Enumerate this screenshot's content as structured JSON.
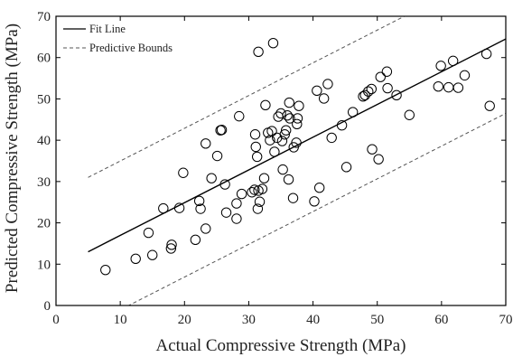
{
  "chart_data": {
    "type": "scatter",
    "xlabel": "Actual Compressive Strength (MPa)",
    "ylabel": "Predicted Compressive Strength (MPa)",
    "xlim": [
      0,
      70
    ],
    "ylim": [
      0,
      70
    ],
    "xticks": [
      0,
      10,
      20,
      30,
      40,
      50,
      60,
      70
    ],
    "yticks": [
      0,
      10,
      20,
      30,
      40,
      50,
      60,
      70
    ],
    "grid": false,
    "legend_position": "top-left",
    "legend": [
      "Fit Line",
      "Predictive Bounds"
    ],
    "colors": {
      "points": "#000000",
      "fit_line": "#000000",
      "bounds": "#555555",
      "axes": "#000000"
    },
    "fit_line": {
      "x": [
        5,
        70
      ],
      "y": [
        13,
        64.5
      ]
    },
    "predictive_bounds": {
      "upper": {
        "x": [
          5,
          70
        ],
        "y": [
          31,
          82.5
        ]
      },
      "lower": {
        "x": [
          5,
          70
        ],
        "y": [
          -5,
          46.5
        ]
      }
    },
    "points": [
      {
        "x": 7.7,
        "y": 8.6
      },
      {
        "x": 12.4,
        "y": 11.3
      },
      {
        "x": 14.4,
        "y": 17.6
      },
      {
        "x": 15.0,
        "y": 12.2
      },
      {
        "x": 16.7,
        "y": 23.5
      },
      {
        "x": 17.9,
        "y": 13.8
      },
      {
        "x": 18.0,
        "y": 14.7
      },
      {
        "x": 19.2,
        "y": 23.6
      },
      {
        "x": 19.8,
        "y": 32.1
      },
      {
        "x": 21.7,
        "y": 15.9
      },
      {
        "x": 22.3,
        "y": 25.3
      },
      {
        "x": 22.5,
        "y": 23.4
      },
      {
        "x": 23.3,
        "y": 39.2
      },
      {
        "x": 23.3,
        "y": 18.6
      },
      {
        "x": 24.2,
        "y": 30.8
      },
      {
        "x": 25.1,
        "y": 36.2
      },
      {
        "x": 25.6,
        "y": 42.4
      },
      {
        "x": 25.8,
        "y": 42.5
      },
      {
        "x": 26.3,
        "y": 29.3
      },
      {
        "x": 26.5,
        "y": 22.5
      },
      {
        "x": 28.1,
        "y": 21.0
      },
      {
        "x": 28.1,
        "y": 24.7
      },
      {
        "x": 28.5,
        "y": 45.8
      },
      {
        "x": 28.9,
        "y": 27.0
      },
      {
        "x": 30.5,
        "y": 27.4
      },
      {
        "x": 30.9,
        "y": 28.0
      },
      {
        "x": 31.0,
        "y": 41.4
      },
      {
        "x": 31.1,
        "y": 38.4
      },
      {
        "x": 31.3,
        "y": 36.0
      },
      {
        "x": 31.4,
        "y": 23.4
      },
      {
        "x": 31.5,
        "y": 27.8
      },
      {
        "x": 31.5,
        "y": 61.4
      },
      {
        "x": 31.7,
        "y": 25.1
      },
      {
        "x": 32.1,
        "y": 28.2
      },
      {
        "x": 32.4,
        "y": 30.8
      },
      {
        "x": 32.6,
        "y": 48.5
      },
      {
        "x": 33.0,
        "y": 41.8
      },
      {
        "x": 33.3,
        "y": 40.0
      },
      {
        "x": 33.6,
        "y": 42.2
      },
      {
        "x": 33.8,
        "y": 63.5
      },
      {
        "x": 34.0,
        "y": 37.2
      },
      {
        "x": 34.4,
        "y": 40.6
      },
      {
        "x": 34.6,
        "y": 45.7
      },
      {
        "x": 35.0,
        "y": 46.5
      },
      {
        "x": 35.2,
        "y": 39.8
      },
      {
        "x": 35.3,
        "y": 32.9
      },
      {
        "x": 35.6,
        "y": 41.4
      },
      {
        "x": 35.8,
        "y": 42.4
      },
      {
        "x": 36.0,
        "y": 46.0
      },
      {
        "x": 36.2,
        "y": 30.5
      },
      {
        "x": 36.3,
        "y": 49.1
      },
      {
        "x": 36.4,
        "y": 45.3
      },
      {
        "x": 36.9,
        "y": 26.0
      },
      {
        "x": 37.0,
        "y": 38.3
      },
      {
        "x": 37.4,
        "y": 39.4
      },
      {
        "x": 37.5,
        "y": 43.9
      },
      {
        "x": 37.6,
        "y": 45.3
      },
      {
        "x": 37.8,
        "y": 48.3
      },
      {
        "x": 40.2,
        "y": 25.2
      },
      {
        "x": 40.6,
        "y": 52.0
      },
      {
        "x": 41.0,
        "y": 28.5
      },
      {
        "x": 41.7,
        "y": 50.1
      },
      {
        "x": 42.3,
        "y": 53.6
      },
      {
        "x": 42.9,
        "y": 40.6
      },
      {
        "x": 44.5,
        "y": 43.6
      },
      {
        "x": 45.2,
        "y": 33.5
      },
      {
        "x": 46.2,
        "y": 46.8
      },
      {
        "x": 47.8,
        "y": 50.6
      },
      {
        "x": 48.1,
        "y": 50.9
      },
      {
        "x": 48.6,
        "y": 51.8
      },
      {
        "x": 49.1,
        "y": 52.4
      },
      {
        "x": 49.2,
        "y": 37.8
      },
      {
        "x": 50.2,
        "y": 35.4
      },
      {
        "x": 50.5,
        "y": 55.3
      },
      {
        "x": 51.5,
        "y": 56.6
      },
      {
        "x": 51.6,
        "y": 52.6
      },
      {
        "x": 53.0,
        "y": 50.9
      },
      {
        "x": 55.0,
        "y": 46.1
      },
      {
        "x": 59.5,
        "y": 53.0
      },
      {
        "x": 59.9,
        "y": 58.0
      },
      {
        "x": 61.1,
        "y": 52.8
      },
      {
        "x": 61.8,
        "y": 59.2
      },
      {
        "x": 62.6,
        "y": 52.7
      },
      {
        "x": 63.6,
        "y": 55.7
      },
      {
        "x": 67.0,
        "y": 60.9
      },
      {
        "x": 67.5,
        "y": 48.3
      }
    ]
  }
}
